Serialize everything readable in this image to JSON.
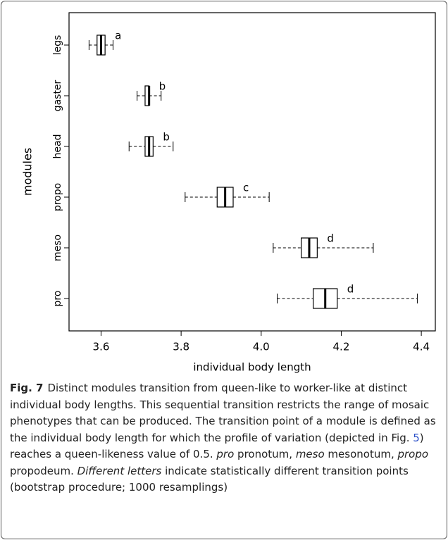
{
  "chart_data": {
    "type": "boxplot",
    "orientation": "horizontal",
    "xlabel": "individual body length",
    "ylabel": "modules",
    "categories": [
      "legs",
      "gaster",
      "head",
      "propo",
      "meso",
      "pro"
    ],
    "min": [
      3.57,
      3.69,
      3.67,
      3.81,
      4.03,
      4.04
    ],
    "q1": [
      3.59,
      3.71,
      3.71,
      3.89,
      4.1,
      4.13
    ],
    "median": [
      3.6,
      3.72,
      3.72,
      3.91,
      4.12,
      4.16
    ],
    "q3": [
      3.61,
      3.72,
      3.73,
      3.93,
      4.14,
      4.19
    ],
    "max": [
      3.63,
      3.75,
      3.78,
      4.02,
      4.28,
      4.39
    ],
    "annotations": [
      "a",
      "b",
      "b",
      "c",
      "d",
      "d"
    ],
    "xlim": [
      3.52,
      4.435
    ],
    "xticks": [
      {
        "value": 3.6,
        "label": "3.6"
      },
      {
        "value": 3.8,
        "label": "3.8"
      },
      {
        "value": 4.0,
        "label": "4.0"
      },
      {
        "value": 4.2,
        "label": "4.2"
      },
      {
        "value": 4.4,
        "label": "4.4"
      }
    ],
    "color": "#000000"
  },
  "caption": {
    "label": "Fig. 7",
    "runs": [
      {
        "text": "Distinct modules transition from queen-like to worker-like at distinct individual body lengths. This sequential transition restricts the range of mosaic phenotypes that can be produced. The transition point of a module is defined as the individual body length for which the profile of variation (depicted in Fig. ",
        "style": "normal"
      },
      {
        "text": "5",
        "style": "link"
      },
      {
        "text": ") reaches a queen-likeness value of 0.5. ",
        "style": "normal"
      },
      {
        "text": "pro",
        "style": "italic"
      },
      {
        "text": " pronotum, ",
        "style": "normal"
      },
      {
        "text": "meso",
        "style": "italic"
      },
      {
        "text": " mesonotum, ",
        "style": "normal"
      },
      {
        "text": "propo",
        "style": "italic"
      },
      {
        "text": " propodeum. ",
        "style": "normal"
      },
      {
        "text": "Different letters",
        "style": "italic"
      },
      {
        "text": " indicate statistically different transition points (bootstrap procedure; 1000 resamplings)",
        "style": "normal"
      }
    ]
  }
}
